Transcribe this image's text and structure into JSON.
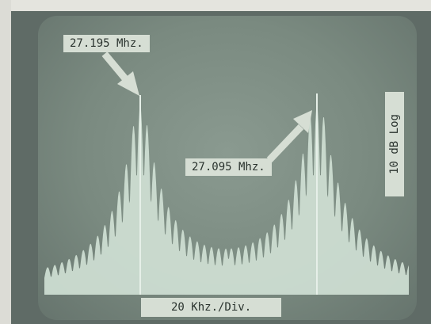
{
  "labels": {
    "left_peak": "27.195 Mhz.",
    "right_peak": "27.095 Mhz.",
    "horizontal_scale": "20 Khz./Div.",
    "vertical_scale": "10 dB Log"
  },
  "colors": {
    "trace": "#cfe0d4",
    "screen": "#7a8a80",
    "label_bg": "#d6ded4"
  }
}
